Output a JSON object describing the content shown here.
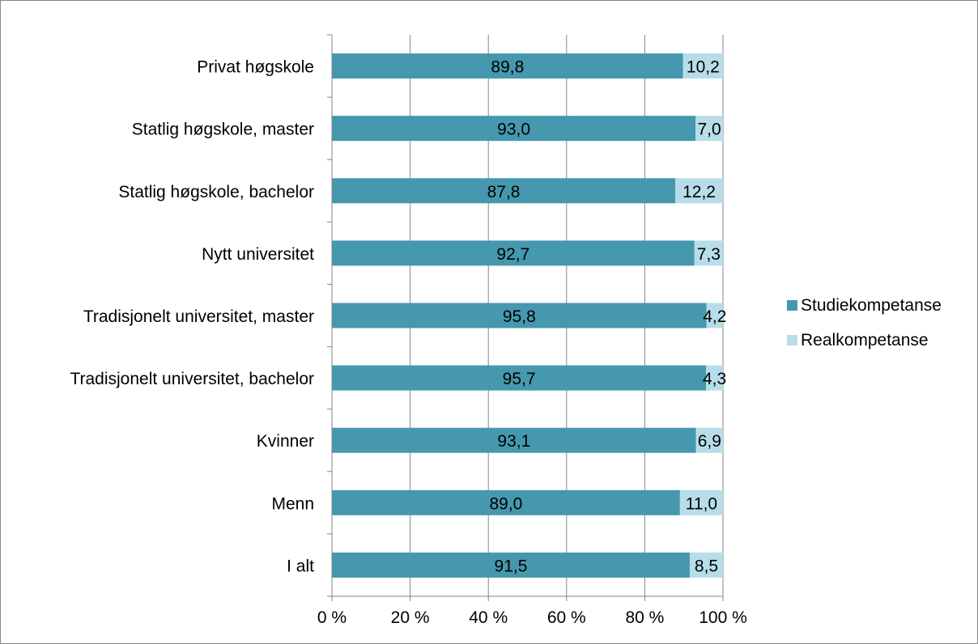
{
  "chart_data": {
    "type": "bar",
    "orientation": "horizontal",
    "stacked": "percent",
    "categories": [
      "Privat høgskole",
      "Statlig høgskole, master",
      "Statlig høgskole, bachelor",
      "Nytt universitet",
      "Tradisjonelt universitet, master",
      "Tradisjonelt universitet, bachelor",
      "Kvinner",
      "Menn",
      "I alt"
    ],
    "series": [
      {
        "name": "Studiekompetanse",
        "color": "#4598ae",
        "values": [
          89.8,
          93.0,
          87.8,
          92.7,
          95.8,
          95.7,
          93.1,
          89.0,
          91.5
        ],
        "labels": [
          "89,8",
          "93,0",
          "87,8",
          "92,7",
          "95,8",
          "95,7",
          "93,1",
          "89,0",
          "91,5"
        ]
      },
      {
        "name": "Realkompetanse",
        "color": "#b7dde8",
        "values": [
          10.2,
          7.0,
          12.2,
          7.3,
          4.2,
          4.3,
          6.9,
          11.0,
          8.5
        ],
        "labels": [
          "10,2",
          "7,0",
          "12,2",
          "7,3",
          "4,2",
          "4,3",
          "6,9",
          "11,0",
          "8,5"
        ]
      }
    ],
    "xlim": [
      0,
      100
    ],
    "xticks": [
      0,
      20,
      40,
      60,
      80,
      100
    ],
    "xtick_labels": [
      "0 %",
      "20 %",
      "40 %",
      "60 %",
      "80 %",
      "100 %"
    ],
    "grid": "vertical",
    "legend": "right"
  }
}
